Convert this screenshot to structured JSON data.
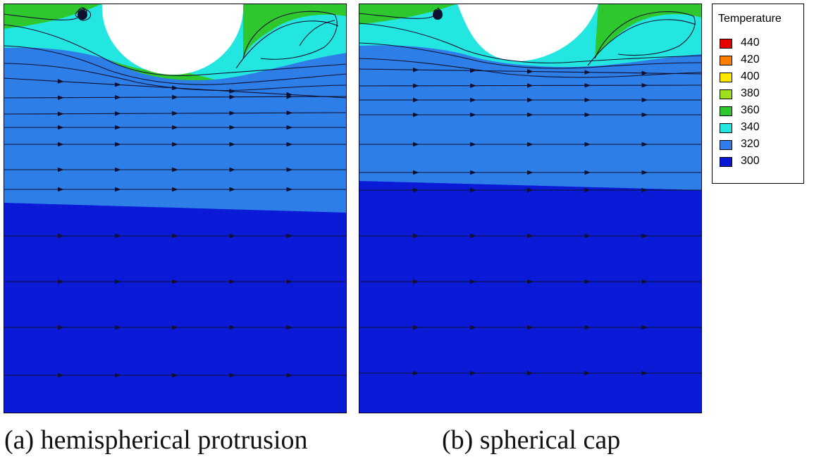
{
  "panels": [
    {
      "id": "a",
      "caption": "(a) hemispherical protrusion",
      "shape": "hemispherical"
    },
    {
      "id": "b",
      "caption": "(b) spherical cap",
      "shape": "spherical-cap"
    }
  ],
  "legend": {
    "title": "Temperature",
    "levels": [
      {
        "value": "440",
        "color": "#e60000"
      },
      {
        "value": "420",
        "color": "#ff7f00"
      },
      {
        "value": "400",
        "color": "#ffe800"
      },
      {
        "value": "380",
        "color": "#9ee01c"
      },
      {
        "value": "360",
        "color": "#2ec82e"
      },
      {
        "value": "340",
        "color": "#24e6e0"
      },
      {
        "value": "320",
        "color": "#2f7de8"
      },
      {
        "value": "300",
        "color": "#0a16d4"
      }
    ]
  },
  "colors": {
    "t300": "#0a1ad6",
    "t320": "#2e7ee8",
    "t340": "#24e6e0",
    "t360": "#2ec82e",
    "streamline": "#101030"
  }
}
